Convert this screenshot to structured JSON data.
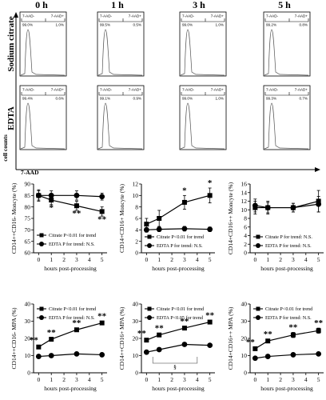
{
  "flow": {
    "timepoints": [
      "0 h",
      "1 h",
      "3 h",
      "5 h"
    ],
    "rows": [
      {
        "label": "Sodium citrate",
        "gates": [
          {
            "neg_label": "7-AAD-",
            "neg_value": "99.0%",
            "pos_label": "7-AAD+",
            "pos_value": "1.0%"
          },
          {
            "neg_label": "7-AAD-",
            "neg_value": "99.5%",
            "pos_label": "7-AAD+",
            "pos_value": "0.5%"
          },
          {
            "neg_label": "7-AAD-",
            "neg_value": "99.0%",
            "pos_label": "7-AAD+",
            "pos_value": "1.0%"
          },
          {
            "neg_label": "7-AAD-",
            "neg_value": "99.2%",
            "pos_label": "7-AAD+",
            "pos_value": "0.8%"
          }
        ]
      },
      {
        "label": "EDTA",
        "gates": [
          {
            "neg_label": "7-AAD-",
            "neg_value": "99.4%",
            "pos_label": "7-AAD+",
            "pos_value": "0.6%"
          },
          {
            "neg_label": "7-AAD-",
            "neg_value": "99.1%",
            "pos_label": "7-AAD+",
            "pos_value": "0.9%"
          },
          {
            "neg_label": "7-AAD-",
            "neg_value": "99.0%",
            "pos_label": "7-AAD+",
            "pos_value": "1.0%"
          },
          {
            "neg_label": "7-AAD-",
            "neg_value": "99.3%",
            "pos_label": "7-AAD+",
            "pos_value": "0.7%"
          }
        ]
      }
    ],
    "ylabel": "cell counts",
    "xlabel": "7-AAD"
  },
  "chart_data": [
    {
      "type": "line",
      "ylabel": "CD14++CD16- Moncyte (%)",
      "xlabel": "hours post-processing",
      "ylim": [
        60,
        90
      ],
      "yticks": [
        60,
        65,
        70,
        75,
        80,
        85,
        90
      ],
      "xlim": [
        -0.4,
        5.4
      ],
      "xticks": [
        0,
        1,
        2,
        3,
        4,
        5
      ],
      "legend_position": "bottom-left",
      "series": [
        {
          "name": "Citrate",
          "marker": "square",
          "x": [
            0,
            1,
            3,
            5
          ],
          "values": [
            85.0,
            83.0,
            80.5,
            78.0
          ],
          "err": [
            2.5,
            2.0,
            2.0,
            2.0
          ],
          "annotations": [
            "",
            "*",
            "**",
            "**"
          ],
          "trend": "Citrate P<0.01 for trend"
        },
        {
          "name": "EDTA",
          "marker": "circle",
          "x": [
            0,
            1,
            3,
            5
          ],
          "values": [
            85.0,
            85.0,
            85.0,
            84.5
          ],
          "err": [
            2.0,
            2.0,
            2.0,
            1.5
          ],
          "annotations": [
            "",
            "",
            "",
            ""
          ],
          "trend": "EDTA P for trend: N.S."
        }
      ]
    },
    {
      "type": "line",
      "ylabel": "CD14+CD16+ Moncyte (%)",
      "xlabel": "hours post-processing",
      "ylim": [
        0,
        12
      ],
      "yticks": [
        0,
        2,
        4,
        6,
        8,
        10,
        12
      ],
      "xlim": [
        -0.4,
        5.4
      ],
      "xticks": [
        0,
        1,
        2,
        3,
        4,
        5
      ],
      "legend_position": "bottom",
      "series": [
        {
          "name": "Citrate",
          "marker": "square",
          "x": [
            0,
            1,
            3,
            5
          ],
          "values": [
            5.0,
            6.0,
            8.8,
            10.0
          ],
          "err": [
            1.0,
            1.4,
            1.2,
            1.3
          ],
          "annotations": [
            "",
            "",
            "*",
            "*"
          ],
          "trend": "Citrate P<0.01 for trend"
        },
        {
          "name": "EDTA",
          "marker": "circle",
          "x": [
            0,
            1,
            3,
            5
          ],
          "values": [
            4.0,
            4.1,
            4.2,
            4.1
          ],
          "err": [
            0.4,
            0.4,
            0.4,
            0.4
          ],
          "annotations": [
            "",
            "",
            "",
            ""
          ],
          "trend": "EDTA P for trend: N.S."
        }
      ]
    },
    {
      "type": "line",
      "ylabel": "CD14+CD16++ Moncyte (%)",
      "xlabel": "hours post-processing",
      "ylim": [
        0,
        16
      ],
      "yticks": [
        0,
        2,
        4,
        6,
        8,
        10,
        12,
        14,
        16
      ],
      "xlim": [
        -0.4,
        5.4
      ],
      "xticks": [
        0,
        1,
        2,
        3,
        4,
        5
      ],
      "legend_position": "bottom",
      "series": [
        {
          "name": "Citrate",
          "marker": "square",
          "x": [
            0,
            1,
            3,
            5
          ],
          "values": [
            10.5,
            10.5,
            10.5,
            12.0
          ],
          "err": [
            1.5,
            1.5,
            1.0,
            2.5
          ],
          "annotations": [
            "",
            "",
            "",
            ""
          ],
          "trend": "Citrate P for trend: N.S."
        },
        {
          "name": "EDTA",
          "marker": "circle",
          "x": [
            0,
            1,
            3,
            5
          ],
          "values": [
            11.0,
            10.5,
            10.5,
            11.3
          ],
          "err": [
            1.5,
            1.2,
            1.0,
            1.8
          ],
          "annotations": [
            "",
            "",
            "",
            ""
          ],
          "trend": "EDTA P for trend: N.S."
        }
      ]
    },
    {
      "type": "line",
      "ylabel": "CD14++CD16- MPA (%)",
      "xlabel": "hours post-processing",
      "ylim": [
        0,
        40
      ],
      "yticks": [
        0,
        10,
        20,
        30,
        40
      ],
      "xlim": [
        -0.4,
        5.4
      ],
      "xticks": [
        0,
        1,
        2,
        3,
        4,
        5
      ],
      "legend_position": "top",
      "series": [
        {
          "name": "Citrate",
          "marker": "square",
          "x": [
            0,
            1,
            3,
            5
          ],
          "values": [
            15.0,
            19.5,
            25.0,
            29.0
          ],
          "err": [
            1.0,
            1.0,
            1.0,
            1.0
          ],
          "annotations": [
            "**",
            "**",
            "**",
            "**"
          ],
          "trend": "Citrate P<0.01 for trend"
        },
        {
          "name": "EDTA",
          "marker": "circle",
          "x": [
            0,
            1,
            3,
            5
          ],
          "values": [
            9.5,
            10.0,
            11.0,
            10.5
          ],
          "err": [
            0.5,
            0.5,
            0.5,
            0.5
          ],
          "annotations": [
            "",
            "",
            "",
            ""
          ],
          "trend": "EDTA P for trend: N.S."
        }
      ]
    },
    {
      "type": "line",
      "ylabel": "CD14++CD16+ MPA (%)",
      "xlabel": "hours post-processing",
      "ylim": [
        0,
        40
      ],
      "yticks": [
        0,
        10,
        20,
        30,
        40
      ],
      "xlim": [
        -0.4,
        5.4
      ],
      "xticks": [
        0,
        1,
        2,
        3,
        4,
        5
      ],
      "legend_position": "top",
      "series": [
        {
          "name": "Citrate",
          "marker": "square",
          "x": [
            0,
            1,
            3,
            5
          ],
          "values": [
            19.0,
            22.0,
            26.0,
            29.5
          ],
          "err": [
            1.0,
            1.0,
            1.0,
            1.0
          ],
          "annotations": [
            "**",
            "**",
            "**",
            "**"
          ],
          "trend": "Citrate P<0.01 for trend"
        },
        {
          "name": "EDTA",
          "marker": "circle",
          "x": [
            0,
            1,
            3,
            5
          ],
          "values": [
            12.0,
            13.5,
            16.5,
            16.0
          ],
          "err": [
            0.8,
            0.8,
            0.8,
            0.8
          ],
          "annotations": [
            "",
            "",
            "",
            ""
          ],
          "trend": "EDTA P<0.05 for trend"
        }
      ],
      "brackets": [
        {
          "label": "§",
          "from_x": 0.5,
          "to_x": 4.0
        }
      ]
    },
    {
      "type": "line",
      "ylabel": "CD14+CD16++ MPA (%)",
      "xlabel": "hours post-processing",
      "ylim": [
        0,
        40
      ],
      "yticks": [
        0,
        10,
        20,
        30,
        40
      ],
      "xlim": [
        -0.4,
        5.4
      ],
      "xticks": [
        0,
        1,
        2,
        3,
        4,
        5
      ],
      "legend_position": "top",
      "series": [
        {
          "name": "Citrate",
          "marker": "square",
          "x": [
            0,
            1,
            3,
            5
          ],
          "values": [
            14.0,
            18.5,
            22.0,
            24.5
          ],
          "err": [
            1.0,
            1.0,
            1.5,
            1.5
          ],
          "annotations": [
            "**",
            "**",
            "**",
            "**"
          ],
          "trend": "Citrate P<0.01 for trend"
        },
        {
          "name": "EDTA",
          "marker": "circle",
          "x": [
            0,
            1,
            3,
            5
          ],
          "values": [
            8.5,
            9.5,
            10.5,
            11.0
          ],
          "err": [
            0.5,
            0.5,
            0.5,
            0.5
          ],
          "annotations": [
            "",
            "",
            "",
            ""
          ],
          "trend": "EDTA P for trend: N.S."
        }
      ]
    }
  ]
}
